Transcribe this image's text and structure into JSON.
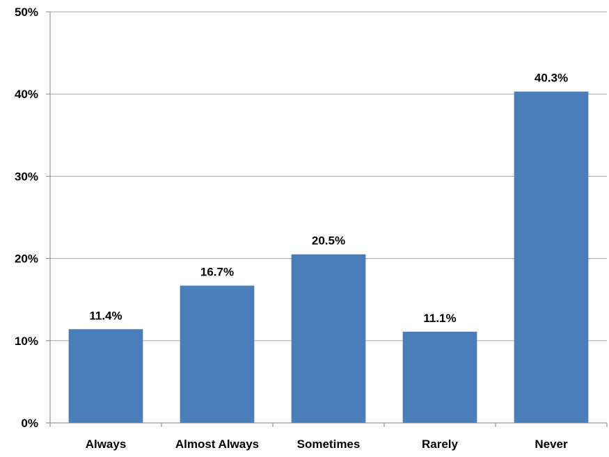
{
  "chart_data": {
    "type": "bar",
    "categories": [
      "Always",
      "Almost Always",
      "Sometimes",
      "Rarely",
      "Never"
    ],
    "values": [
      11.4,
      16.7,
      20.5,
      11.1,
      40.3
    ],
    "data_labels": [
      "11.4%",
      "16.7%",
      "20.5%",
      "11.1%",
      "40.3%"
    ],
    "title": "",
    "xlabel": "",
    "ylabel": "",
    "ylim": [
      0,
      50
    ],
    "yticks": [
      0,
      10,
      20,
      30,
      40,
      50
    ],
    "ytick_labels": [
      "0%",
      "10%",
      "20%",
      "30%",
      "40%",
      "50%"
    ],
    "grid": true,
    "legend": "none",
    "colors": {
      "bar": "#4a7ebb",
      "grid": "#a6a6a6",
      "axis": "#868686"
    }
  }
}
